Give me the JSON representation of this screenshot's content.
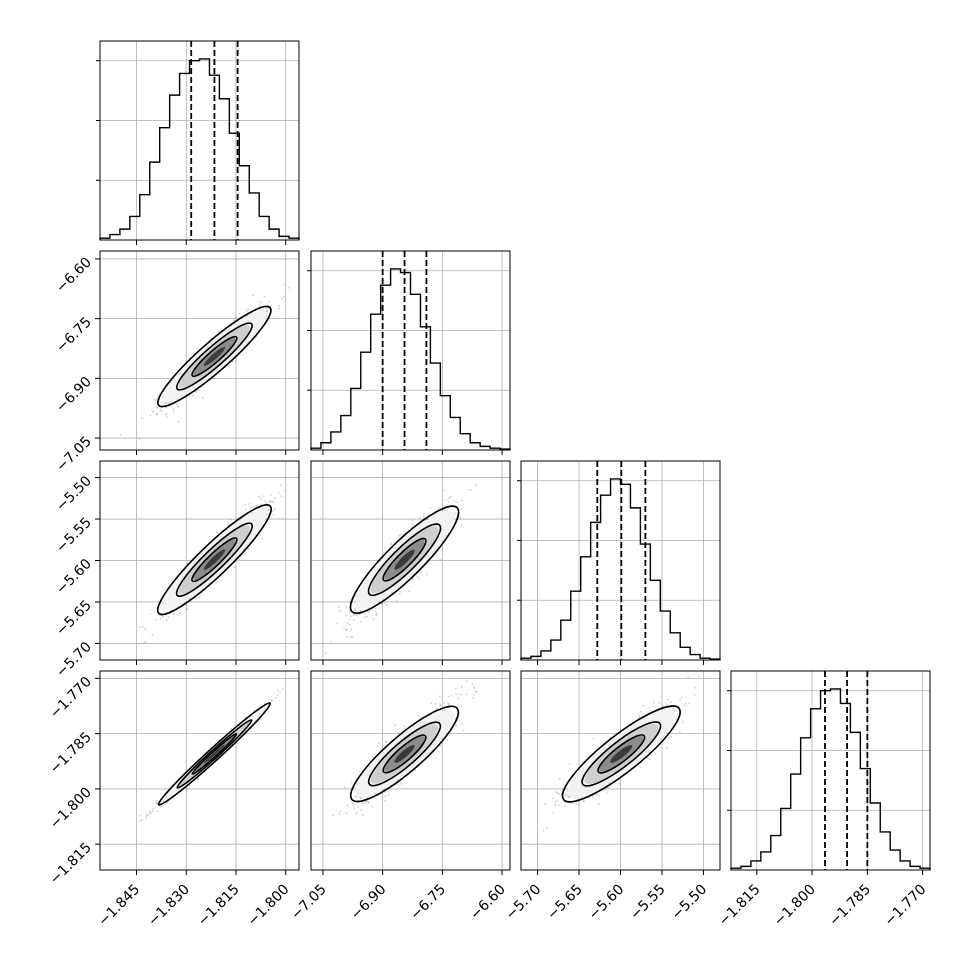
{
  "chart_data": {
    "type": "corner",
    "parameters": [
      {
        "ticks": [
          "−1.845",
          "−1.830",
          "−1.815",
          "−1.800"
        ],
        "tick_values": [
          -1.845,
          -1.83,
          -1.815,
          -1.8
        ],
        "range": [
          -1.856,
          -1.796
        ]
      },
      {
        "ticks": [
          "−7.05",
          "−6.90",
          "−6.75",
          "−6.60"
        ],
        "tick_values": [
          -7.05,
          -6.9,
          -6.75,
          -6.6
        ],
        "range": [
          -7.08,
          -6.58
        ]
      },
      {
        "ticks": [
          "−5.70",
          "−5.65",
          "−5.60",
          "−5.55",
          "−5.50"
        ],
        "tick_values": [
          -5.7,
          -5.65,
          -5.6,
          -5.55,
          -5.5
        ],
        "range": [
          -5.72,
          -5.48
        ]
      },
      {
        "ticks": [
          "−1.815",
          "−1.800",
          "−1.785",
          "−1.770"
        ],
        "tick_values": [
          -1.815,
          -1.8,
          -1.785,
          -1.77
        ],
        "range": [
          -1.822,
          -1.768
        ]
      }
    ],
    "quantiles": [
      {
        "q16": -1.8285,
        "q50": -1.8215,
        "q84": -1.8145
      },
      {
        "q16": -6.9,
        "q50": -6.845,
        "q84": -6.79
      },
      {
        "q16": -5.628,
        "q50": -5.599,
        "q84": -5.57
      },
      {
        "q16": -1.7965,
        "q50": -1.7905,
        "q84": -1.785
      }
    ],
    "histograms": [
      [
        0.01,
        0.03,
        0.06,
        0.13,
        0.25,
        0.43,
        0.62,
        0.8,
        0.92,
        0.99,
        1.0,
        0.91,
        0.78,
        0.59,
        0.41,
        0.26,
        0.13,
        0.06,
        0.02,
        0.01
      ],
      [
        0.01,
        0.04,
        0.1,
        0.19,
        0.34,
        0.54,
        0.75,
        0.91,
        1.0,
        0.98,
        0.86,
        0.68,
        0.48,
        0.3,
        0.18,
        0.09,
        0.04,
        0.02,
        0.01,
        0.005
      ],
      [
        0.01,
        0.02,
        0.05,
        0.11,
        0.22,
        0.38,
        0.57,
        0.76,
        0.91,
        1.0,
        0.97,
        0.84,
        0.64,
        0.44,
        0.27,
        0.15,
        0.07,
        0.03,
        0.01,
        0.005
      ],
      [
        0.01,
        0.02,
        0.05,
        0.1,
        0.19,
        0.34,
        0.53,
        0.73,
        0.89,
        0.99,
        1.0,
        0.92,
        0.76,
        0.56,
        0.37,
        0.21,
        0.11,
        0.05,
        0.02,
        0.01
      ]
    ],
    "correlations": [
      [
        1,
        0.93,
        0.93,
        0.99
      ],
      [
        0.93,
        1,
        0.9,
        0.89
      ],
      [
        0.93,
        0.9,
        1,
        0.89
      ],
      [
        0.99,
        0.89,
        0.89,
        1
      ]
    ],
    "centers": [
      -1.8215,
      -6.845,
      -5.599,
      -1.7905
    ],
    "sigmas": [
      0.007,
      0.055,
      0.029,
      0.0058
    ],
    "grid": true,
    "colors": {
      "hist": "#000000",
      "scatter": "#7f7f7f",
      "grid": "#b0b0b0"
    }
  }
}
